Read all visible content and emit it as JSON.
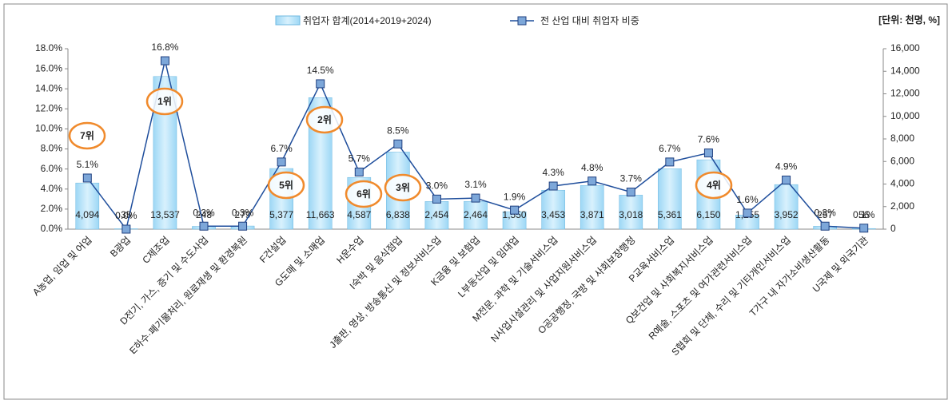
{
  "chart_data": {
    "type": "bar_line",
    "unit_label": "[단위: 천명, %]",
    "categories": [
      "A농업, 임업 및 어업",
      "B광업",
      "C제조업",
      "D전기, 가스, 증기 및 수도사업",
      "E하수·폐기물처리, 원료재생 및 환경복원",
      "F건설업",
      "G도매 및 소매업",
      "H운수업",
      "I숙박 및 음식점업",
      "J출판, 영상, 방송통신 및 정보서비스업",
      "K금융 및 보험업",
      "L부동산업 및 임대업",
      "M전문, 과학 및 기술서비스업",
      "N사업시설관리 및 사업지원서비스업",
      "O공공행정, 국방 및 사회보장행정",
      "P교육서비스업",
      "Q보건업 및 사회복지서비스업",
      "R예술, 스포츠 및 여가관련서비스업",
      "S협회 및 단체, 수리 및 기타개인서비스업",
      "T가구 내 자가소비생산활동",
      "U국제 및 외국기관"
    ],
    "series": [
      {
        "name": "취업자 합계(2014+2019+2024)",
        "color": "#9dd7f5",
        "axis": "y2",
        "values": [
          4094,
          35,
          13537,
          248,
          279,
          5377,
          11663,
          4587,
          6838,
          2454,
          2464,
          1550,
          3453,
          3871,
          3018,
          5361,
          6150,
          1255,
          3952,
          257,
          56
        ],
        "value_labels": [
          "4,094",
          "35",
          "13,537",
          "248",
          "279",
          "5,377",
          "11,663",
          "4,587",
          "6,838",
          "2,454",
          "2,464",
          "1,550",
          "3,453",
          "3,871",
          "3,018",
          "5,361",
          "6,150",
          "1,255",
          "3,952",
          "257",
          "56"
        ]
      },
      {
        "name": "전 산업 대비 취업자 비중",
        "color": "#1f4e9c",
        "axis": "y",
        "values": [
          5.1,
          0.0,
          16.8,
          0.3,
          0.3,
          6.7,
          14.5,
          5.7,
          8.5,
          3.0,
          3.1,
          1.9,
          4.3,
          4.8,
          3.7,
          6.7,
          7.6,
          1.6,
          4.9,
          0.3,
          0.1
        ],
        "value_labels": [
          "5.1%",
          "0.0%",
          "16.8%",
          "0.3%",
          "0.3%",
          "6.7%",
          "14.5%",
          "5.7%",
          "8.5%",
          "3.0%",
          "3.1%",
          "1.9%",
          "4.3%",
          "4.8%",
          "3.7%",
          "6.7%",
          "7.6%",
          "1.6%",
          "4.9%",
          "0.3%",
          "0.1%"
        ]
      }
    ],
    "ylim": [
      0,
      18
    ],
    "yticks": [
      {
        "value": 0,
        "label": "0.0%"
      },
      {
        "value": 2,
        "label": "2.0%"
      },
      {
        "value": 4,
        "label": "4.0%"
      },
      {
        "value": 6,
        "label": "6.0%"
      },
      {
        "value": 8,
        "label": "8.0%"
      },
      {
        "value": 10,
        "label": "10.0%"
      },
      {
        "value": 12,
        "label": "12.0%"
      },
      {
        "value": 14,
        "label": "14.0%"
      },
      {
        "value": 16,
        "label": "16.0%"
      },
      {
        "value": 18,
        "label": "18.0%"
      }
    ],
    "y2lim": [
      0,
      16000
    ],
    "y2ticks": [
      0,
      {
        "value": 2000,
        "label": "2,000"
      },
      {
        "value": 4000,
        "label": "4,000"
      },
      {
        "value": 6000,
        "label": "6,000"
      },
      {
        "value": 8000,
        "label": "8,000"
      },
      {
        "value": 10000,
        "label": "10,000"
      },
      {
        "value": 12000,
        "label": "12,000"
      },
      {
        "value": 14000,
        "label": "14,000"
      },
      {
        "value": 16000,
        "label": "16,000"
      }
    ],
    "annotations": [
      "7위",
      "1위",
      "5위",
      "2위",
      "6위",
      "3위",
      "4위"
    ],
    "legend": "top"
  }
}
